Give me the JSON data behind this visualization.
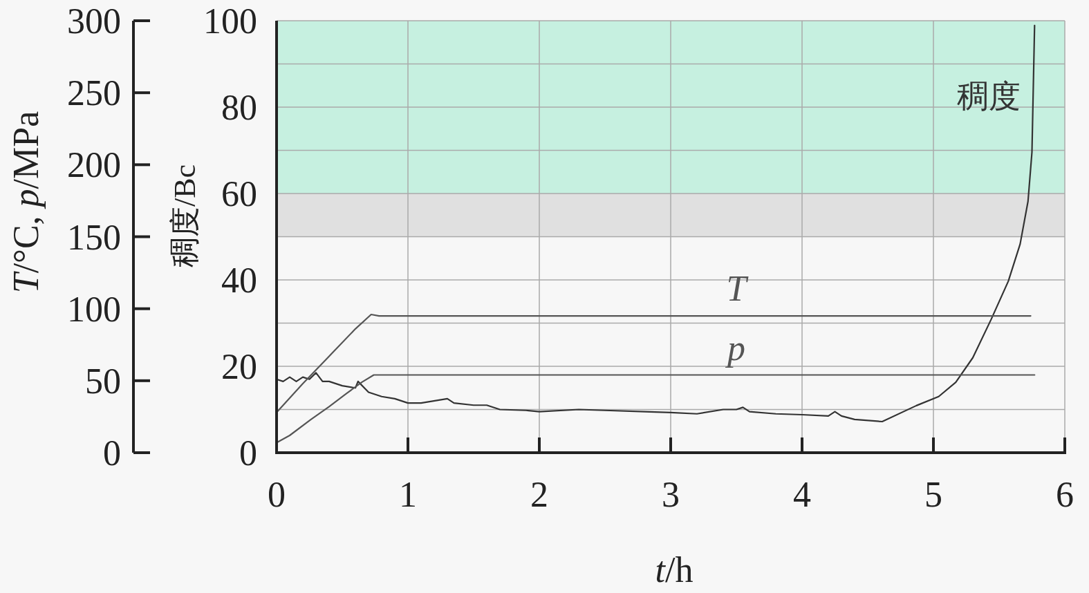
{
  "chart_data": {
    "type": "line",
    "xlabel": "*t*/h",
    "ylabel": "稠度/Bc",
    "y2label": "*T*/°C, *p*/MPa",
    "xlim": [
      0,
      6
    ],
    "xticks": [
      0,
      1,
      2,
      3,
      4,
      5,
      6
    ],
    "ylim": [
      0,
      100
    ],
    "yticks": [
      0,
      {
        "value": 10,
        "label": null
      },
      20,
      {
        "value": 30,
        "label": null
      },
      40,
      {
        "value": 50,
        "label": null
      },
      60,
      {
        "value": 70,
        "label": null
      },
      80,
      {
        "value": 90,
        "label": null
      },
      100
    ],
    "y2lim": [
      0,
      300
    ],
    "y2ticks": [
      0,
      50,
      100,
      150,
      200,
      250,
      300
    ],
    "grid": true,
    "bands": [
      {
        "axis": "y",
        "from": 60,
        "to": 100,
        "color": "#c6f0e0"
      },
      {
        "axis": "y",
        "from": 50,
        "to": 60,
        "color": "#e0e0e0"
      }
    ],
    "series": [
      {
        "name": "稠度",
        "color": "#333333",
        "x": [
          0,
          0.05,
          0.1,
          0.15,
          0.2,
          0.25,
          0.3,
          0.35,
          0.4,
          0.5,
          0.6,
          0.62,
          0.7,
          0.8,
          0.9,
          1.0,
          1.1,
          1.3,
          1.35,
          1.5,
          1.6,
          1.7,
          1.9,
          2.0,
          2.3,
          2.5,
          2.8,
          3.0,
          3.2,
          3.4,
          3.5,
          3.55,
          3.6,
          3.8,
          4.0,
          4.2,
          4.25,
          4.3,
          4.4,
          4.61,
          4.87,
          5.04,
          5.17,
          5.3,
          5.44,
          5.57,
          5.66,
          5.72,
          5.75,
          5.77
        ],
        "values": [
          17,
          16.5,
          17.5,
          16.5,
          17.5,
          17,
          18.5,
          16.5,
          16.5,
          15.5,
          15,
          16.5,
          14,
          13,
          12.5,
          11.5,
          11.5,
          12.5,
          11.5,
          11,
          11,
          10,
          9.8,
          9.5,
          10,
          9.8,
          9.5,
          9.3,
          9,
          10,
          10,
          10.5,
          9.5,
          9,
          8.8,
          8.5,
          9.5,
          8.5,
          7.7,
          7.2,
          10.9,
          13,
          16.3,
          22,
          30.9,
          39.7,
          48.3,
          58.2,
          69.6,
          98.9
        ]
      },
      {
        "name": "T",
        "color": "#555555",
        "axis": "y2",
        "x": [
          0,
          0.2,
          0.4,
          0.6,
          0.72,
          0.78,
          1.0,
          3.0,
          5.74
        ],
        "values": [
          28,
          48,
          67,
          86,
          96,
          95,
          95,
          95,
          95
        ]
      },
      {
        "name": "p",
        "color": "#555555",
        "axis": "y2",
        "x": [
          0,
          0.1,
          0.26,
          0.4,
          0.53,
          0.65,
          0.74,
          0.8,
          1.0,
          3.0,
          5.77
        ],
        "values": [
          7,
          12,
          23,
          32,
          41,
          49,
          54,
          54,
          54,
          54,
          54
        ]
      }
    ]
  }
}
